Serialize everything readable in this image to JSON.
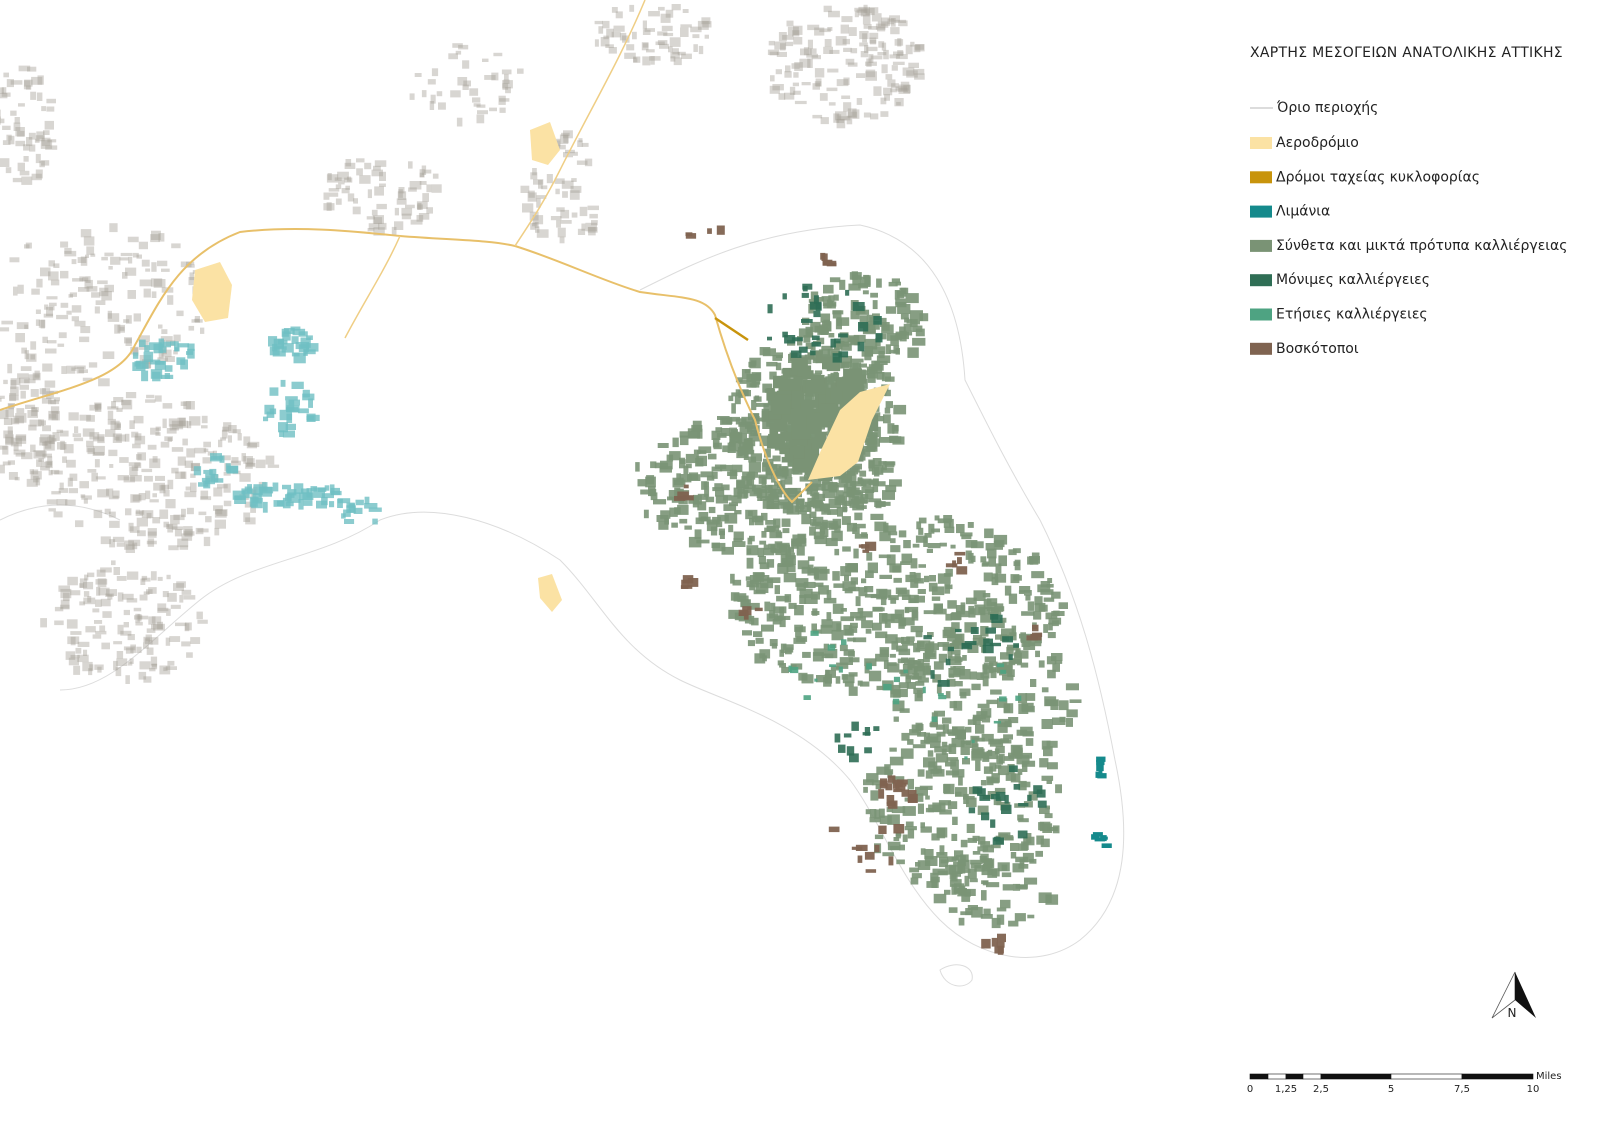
{
  "title": "ΧΑΡΤΗΣ ΜΕΣΟΓΕΙΩΝ ΑΝΑΤΟΛΙΚΗΣ ΑΤΤΙΚΗΣ",
  "legend": {
    "boundary": {
      "label": "Όριο περιοχής",
      "color": "#b9b9b9"
    },
    "items": [
      {
        "label": "Αεροδρόμιο",
        "color": "#fbe2a4"
      },
      {
        "label": "Δρόμοι ταχείας κυκλοφορίας",
        "color": "#c8940c"
      },
      {
        "label": "Λιμάνια",
        "color": "#158a8c"
      },
      {
        "label": "Σύνθετα και μικτά πρότυπα καλλιέργειας",
        "color": "#7a9375"
      },
      {
        "label": "Μόνιμες καλλιέργειες",
        "color": "#2f6e55"
      },
      {
        "label": "Ετήσιες καλλιέργειες",
        "color": "#4ea382"
      },
      {
        "label": "Βοσκότοποι",
        "color": "#7f6350"
      }
    ]
  },
  "north_arrow": "N",
  "scale_bar": {
    "unit": "Miles",
    "labels": [
      "0",
      "1,25",
      "2,5",
      "5",
      "7,5",
      "10"
    ]
  }
}
